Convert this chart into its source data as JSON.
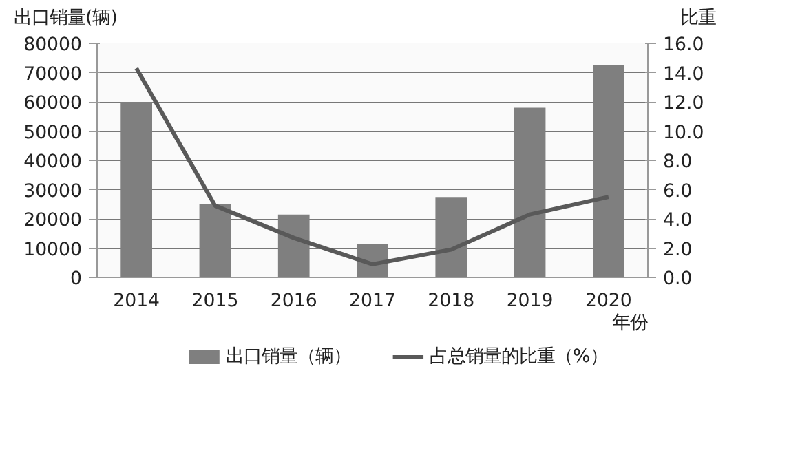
{
  "chart_data": {
    "type": "bar",
    "categories": [
      "2014",
      "2015",
      "2016",
      "2017",
      "2018",
      "2019",
      "2020"
    ],
    "xlabel": "年份",
    "ylabel": "出口销量(辆)",
    "y2label": "比重",
    "ylim": [
      0,
      80000
    ],
    "yticks": [
      0,
      10000,
      20000,
      30000,
      40000,
      50000,
      60000,
      70000,
      80000
    ],
    "y2lim": [
      0,
      16
    ],
    "y2ticks": [
      {
        "value": 0,
        "label": "0.0"
      },
      {
        "value": 2,
        "label": "2.0"
      },
      {
        "value": 4,
        "label": "4.0"
      },
      {
        "value": 6,
        "label": "6.0"
      },
      {
        "value": 8,
        "label": "8.0"
      },
      {
        "value": 10,
        "label": "10.0"
      },
      {
        "value": 12,
        "label": "12.0"
      },
      {
        "value": 14,
        "label": "14.0"
      },
      {
        "value": 16,
        "label": "16.0"
      }
    ],
    "grid": "y",
    "legend": "bottom",
    "series": [
      {
        "name": "出口销量（辆）",
        "color": "#7f7f7f",
        "values": [
          60000,
          25000,
          21500,
          11500,
          27500,
          58000,
          72500
        ]
      },
      {
        "name": "占总销量的比重（%）",
        "type": "line",
        "axis": "y2",
        "color": "#595959",
        "values": [
          14.3,
          4.9,
          2.7,
          0.9,
          1.9,
          4.3,
          5.5
        ]
      }
    ]
  }
}
